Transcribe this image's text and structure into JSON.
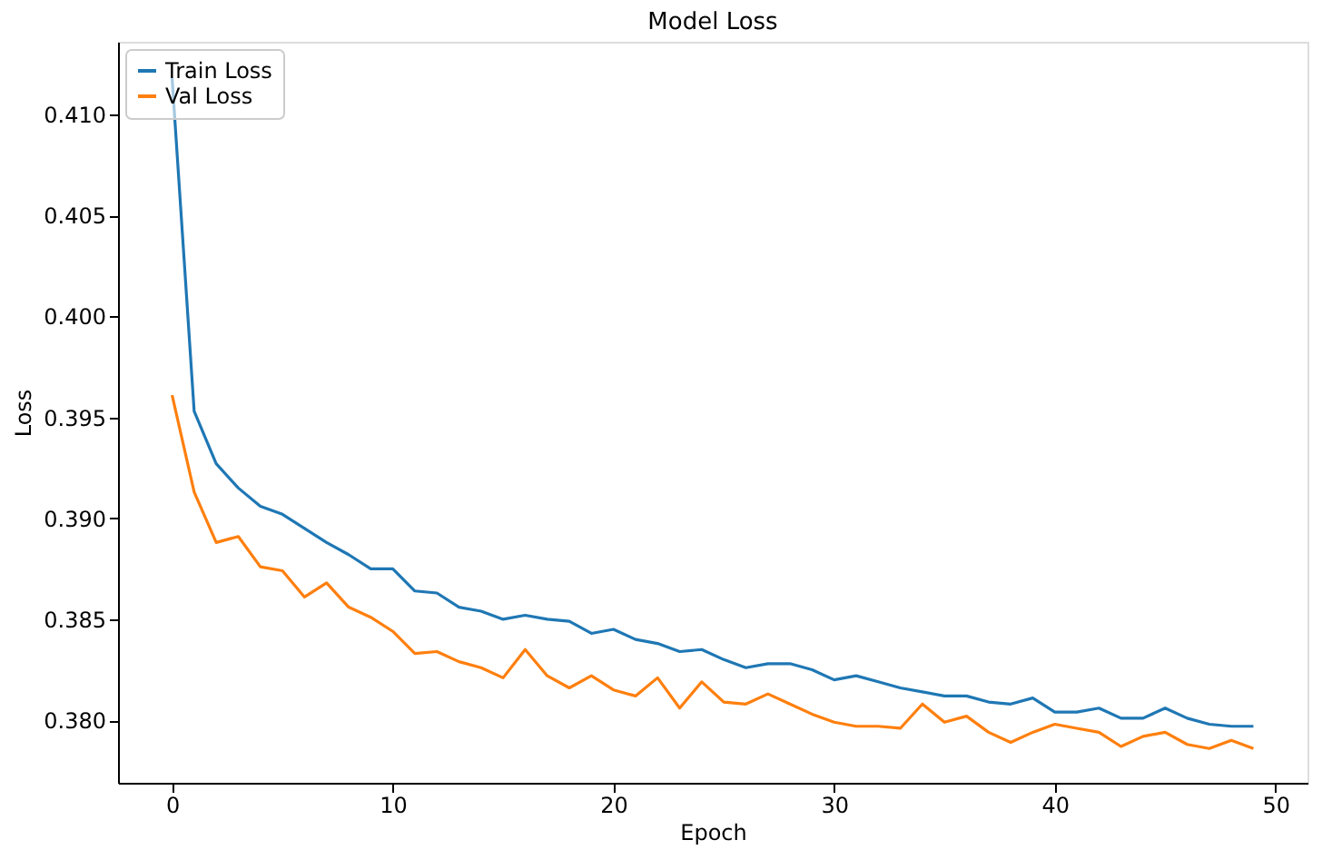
{
  "chart_data": {
    "type": "line",
    "title": "Model Loss",
    "xlabel": "Epoch",
    "ylabel": "Loss",
    "x": [
      0,
      1,
      2,
      3,
      4,
      5,
      6,
      7,
      8,
      9,
      10,
      11,
      12,
      13,
      14,
      15,
      16,
      17,
      18,
      19,
      20,
      21,
      22,
      23,
      24,
      25,
      26,
      27,
      28,
      29,
      30,
      31,
      32,
      33,
      34,
      35,
      36,
      37,
      38,
      39,
      40,
      41,
      42,
      43,
      44,
      45,
      46,
      47,
      48,
      49
    ],
    "series": [
      {
        "name": "Train Loss",
        "color": "#1f77b4",
        "values": [
          0.4118,
          0.3953,
          0.3927,
          0.3915,
          0.3906,
          0.3902,
          0.3895,
          0.3888,
          0.3882,
          0.3875,
          0.3875,
          0.3864,
          0.3863,
          0.3856,
          0.3854,
          0.385,
          0.3852,
          0.385,
          0.3849,
          0.3843,
          0.3845,
          0.384,
          0.3838,
          0.3834,
          0.3835,
          0.383,
          0.3826,
          0.3828,
          0.3828,
          0.3825,
          0.382,
          0.3822,
          0.3819,
          0.3816,
          0.3814,
          0.3812,
          0.3812,
          0.3809,
          0.3808,
          0.3811,
          0.3804,
          0.3804,
          0.3806,
          0.3801,
          0.3801,
          0.3806,
          0.3801,
          0.3798,
          0.3797,
          0.3797
        ]
      },
      {
        "name": "Val Loss",
        "color": "#ff7f0e",
        "values": [
          0.3961,
          0.3913,
          0.3888,
          0.3891,
          0.3876,
          0.3874,
          0.3861,
          0.3868,
          0.3856,
          0.3851,
          0.3844,
          0.3833,
          0.3834,
          0.3829,
          0.3826,
          0.3821,
          0.3835,
          0.3822,
          0.3816,
          0.3822,
          0.3815,
          0.3812,
          0.3821,
          0.3806,
          0.3819,
          0.3809,
          0.3808,
          0.3813,
          0.3808,
          0.3803,
          0.3799,
          0.3797,
          0.3797,
          0.3796,
          0.3808,
          0.3799,
          0.3802,
          0.3794,
          0.3789,
          0.3794,
          0.3798,
          0.3796,
          0.3794,
          0.3787,
          0.3792,
          0.3794,
          0.3788,
          0.3786,
          0.379,
          0.3786
        ]
      }
    ],
    "xlim": [
      -2.45,
      51.45
    ],
    "xticks": [
      0,
      10,
      20,
      30,
      40,
      50
    ],
    "ylim": [
      0.3769,
      0.4136
    ],
    "yticks": [
      {
        "value": 0.38,
        "label": "0.380"
      },
      {
        "value": 0.385,
        "label": "0.385"
      },
      {
        "value": 0.39,
        "label": "0.390"
      },
      {
        "value": 0.395,
        "label": "0.395"
      },
      {
        "value": 0.4,
        "label": "0.400"
      },
      {
        "value": 0.405,
        "label": "0.405"
      },
      {
        "value": 0.41,
        "label": "0.410"
      }
    ],
    "grid": false,
    "legend": "top left",
    "marker": "none",
    "line_style": "solid"
  }
}
